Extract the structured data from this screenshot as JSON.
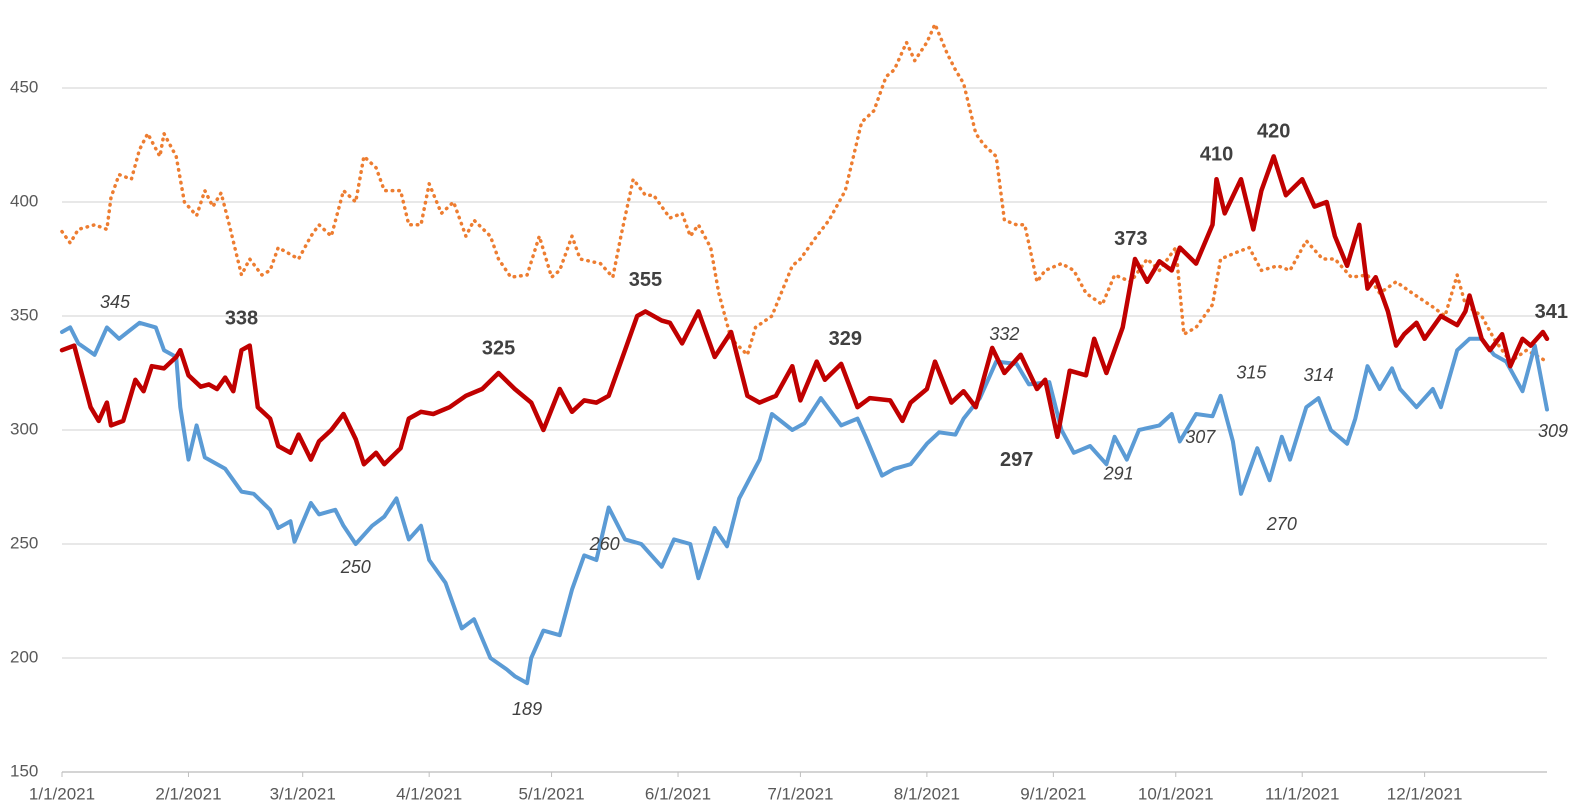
{
  "chart_data": {
    "type": "line",
    "xlim": [
      0,
      364
    ],
    "ylim": [
      150,
      475
    ],
    "grid": true,
    "yticks": [
      150,
      200,
      250,
      300,
      350,
      400,
      450
    ],
    "xticks": [
      {
        "value": 0,
        "label": "1/1/2021"
      },
      {
        "value": 31,
        "label": "2/1/2021"
      },
      {
        "value": 59,
        "label": "3/1/2021"
      },
      {
        "value": 90,
        "label": "4/1/2021"
      },
      {
        "value": 120,
        "label": "5/1/2021"
      },
      {
        "value": 151,
        "label": "6/1/2021"
      },
      {
        "value": 181,
        "label": "7/1/2021"
      },
      {
        "value": 212,
        "label": "8/1/2021"
      },
      {
        "value": 243,
        "label": "9/1/2021"
      },
      {
        "value": 273,
        "label": "10/1/2021"
      },
      {
        "value": 304,
        "label": "11/1/2021"
      },
      {
        "value": 334,
        "label": "12/1/2021"
      }
    ],
    "series": [
      {
        "color": "#ed7d31",
        "style": "dotted",
        "x": [
          0,
          2,
          4,
          8,
          11,
          12,
          14,
          17,
          19,
          21,
          24,
          25,
          28,
          30,
          33,
          35,
          37,
          39,
          41,
          44,
          46,
          49,
          51,
          53,
          56,
          58,
          61,
          63,
          66,
          69,
          72,
          74,
          77,
          79,
          83,
          85,
          88,
          90,
          93,
          96,
          99,
          101,
          105,
          107,
          110,
          114,
          117,
          120,
          122,
          125,
          127,
          132,
          135,
          137,
          140,
          143,
          145,
          149,
          152,
          154,
          156,
          159,
          161,
          164,
          168,
          170,
          174,
          179,
          181,
          185,
          188,
          192,
          196,
          199,
          202,
          204,
          207,
          209,
          212,
          214,
          217,
          219,
          221,
          224,
          226,
          229,
          231,
          234,
          236,
          239,
          241,
          245,
          248,
          251,
          255,
          258,
          262,
          266,
          269,
          273,
          275,
          278,
          282,
          284,
          288,
          291,
          294,
          298,
          301,
          305,
          309,
          312,
          316,
          320,
          323,
          327,
          331,
          336,
          339,
          342,
          344,
          348,
          351,
          355,
          359,
          364
        ],
        "values": [
          387,
          382,
          388,
          390,
          388,
          402,
          412,
          410,
          423,
          430,
          420,
          430,
          420,
          400,
          394,
          405,
          398,
          404,
          390,
          368,
          375,
          368,
          370,
          380,
          377,
          375,
          385,
          390,
          385,
          405,
          400,
          420,
          415,
          405,
          405,
          390,
          390,
          408,
          395,
          400,
          385,
          392,
          385,
          375,
          367,
          368,
          385,
          367,
          370,
          385,
          375,
          373,
          367,
          385,
          410,
          403,
          403,
          393,
          395,
          385,
          390,
          380,
          360,
          340,
          333,
          345,
          350,
          372,
          375,
          385,
          392,
          405,
          435,
          440,
          455,
          458,
          470,
          462,
          470,
          478,
          465,
          458,
          452,
          430,
          425,
          420,
          392,
          390,
          390,
          365,
          370,
          373,
          370,
          360,
          355,
          368,
          365,
          375,
          370,
          380,
          342,
          345,
          355,
          375,
          378,
          380,
          370,
          372,
          370,
          383,
          375,
          375,
          367,
          368,
          360,
          365,
          360,
          354,
          350,
          368,
          355,
          350,
          340,
          330,
          335,
          330
        ],
        "labeled_points": []
      },
      {
        "color": "#5b9bd5",
        "style": "italic",
        "x": [
          0,
          2,
          4,
          8,
          11,
          14,
          19,
          23,
          25,
          28,
          29,
          31,
          33,
          35,
          40,
          44,
          47,
          51,
          53,
          56,
          57,
          61,
          63,
          67,
          69,
          72,
          76,
          79,
          82,
          85,
          88,
          90,
          94,
          98,
          101,
          105,
          109,
          111,
          114,
          115,
          118,
          122,
          125,
          128,
          131,
          134,
          138,
          142,
          147,
          150,
          154,
          156,
          160,
          163,
          166,
          171,
          174,
          179,
          182,
          186,
          191,
          195,
          197,
          201,
          204,
          208,
          212,
          215,
          219,
          221,
          225,
          229,
          234,
          237,
          242,
          245,
          248,
          252,
          256,
          258,
          261,
          264,
          269,
          272,
          274,
          278,
          282,
          284,
          287,
          289,
          293,
          296,
          299,
          301,
          305,
          308,
          311,
          315,
          317,
          320,
          323,
          326,
          328,
          332,
          336,
          338,
          342,
          345,
          348,
          351,
          354,
          358,
          361,
          364
        ],
        "values": [
          343,
          345,
          338,
          333,
          345,
          340,
          347,
          345,
          335,
          332,
          310,
          287,
          302,
          288,
          283,
          273,
          272,
          265,
          257,
          260,
          251,
          268,
          263,
          265,
          258,
          250,
          258,
          262,
          270,
          252,
          258,
          243,
          233,
          213,
          217,
          200,
          195,
          192,
          189,
          200,
          212,
          210,
          230,
          245,
          243,
          266,
          252,
          250,
          240,
          252,
          250,
          235,
          257,
          249,
          270,
          287,
          307,
          300,
          303,
          314,
          302,
          305,
          297,
          280,
          283,
          285,
          294,
          299,
          298,
          305,
          314,
          330,
          329,
          320,
          321,
          300,
          290,
          293,
          285,
          297,
          287,
          300,
          302,
          307,
          295,
          307,
          306,
          315,
          295,
          272,
          292,
          278,
          297,
          287,
          310,
          314,
          300,
          294,
          305,
          328,
          318,
          327,
          318,
          310,
          318,
          310,
          335,
          340,
          340,
          333,
          330,
          317,
          337,
          309
        ],
        "labeled_points": [
          {
            "x": 13,
            "value": 345
          },
          {
            "x": 72,
            "value": 250
          },
          {
            "x": 114,
            "value": 189
          },
          {
            "x": 133,
            "value": 260
          },
          {
            "x": 231,
            "value": 332
          },
          {
            "x": 259,
            "value": 291
          },
          {
            "x": 279,
            "value": 307
          },
          {
            "x": 294,
            "value": 315
          },
          {
            "x": 299,
            "value": 270
          },
          {
            "x": 308,
            "value": 314
          },
          {
            "x": 364,
            "value": 309
          }
        ]
      },
      {
        "color": "#c00000",
        "style": "bold",
        "x": [
          0,
          3,
          7,
          9,
          11,
          12,
          15,
          18,
          20,
          22,
          25,
          28,
          29,
          31,
          34,
          36,
          38,
          40,
          42,
          44,
          46,
          48,
          51,
          53,
          56,
          58,
          61,
          63,
          66,
          69,
          72,
          74,
          77,
          79,
          83,
          85,
          88,
          91,
          95,
          99,
          103,
          107,
          111,
          115,
          118,
          122,
          125,
          128,
          131,
          134,
          138,
          141,
          143,
          147,
          149,
          152,
          156,
          160,
          164,
          168,
          171,
          175,
          179,
          181,
          185,
          187,
          191,
          195,
          198,
          203,
          206,
          208,
          212,
          214,
          218,
          221,
          224,
          228,
          231,
          235,
          239,
          241,
          244,
          247,
          251,
          253,
          256,
          260,
          263,
          266,
          269,
          272,
          274,
          278,
          282,
          283,
          285,
          289,
          292,
          294,
          297,
          300,
          304,
          307,
          310,
          312,
          315,
          318,
          320,
          322,
          325,
          327,
          329,
          332,
          334,
          338,
          342,
          344,
          345,
          348,
          350,
          353,
          355,
          358,
          360,
          363,
          364
        ],
        "values": [
          335,
          337,
          310,
          304,
          312,
          302,
          304,
          322,
          317,
          328,
          327,
          332,
          335,
          324,
          319,
          320,
          318,
          323,
          317,
          335,
          337,
          310,
          305,
          293,
          290,
          298,
          287,
          295,
          300,
          307,
          296,
          285,
          290,
          285,
          292,
          305,
          308,
          307,
          310,
          315,
          318,
          325,
          318,
          312,
          300,
          318,
          308,
          313,
          312,
          315,
          335,
          350,
          352,
          348,
          347,
          338,
          352,
          332,
          343,
          315,
          312,
          315,
          328,
          313,
          330,
          322,
          329,
          310,
          314,
          313,
          304,
          312,
          318,
          330,
          312,
          317,
          310,
          336,
          325,
          333,
          318,
          322,
          297,
          326,
          324,
          340,
          325,
          345,
          375,
          365,
          374,
          370,
          380,
          373,
          390,
          410,
          395,
          410,
          388,
          405,
          420,
          403,
          410,
          398,
          400,
          385,
          372,
          390,
          362,
          367,
          352,
          337,
          342,
          347,
          340,
          350,
          346,
          352,
          359,
          340,
          335,
          342,
          328,
          340,
          337,
          343,
          340
        ],
        "labeled_points": [
          {
            "x": 44,
            "value": 338
          },
          {
            "x": 107,
            "value": 325
          },
          {
            "x": 143,
            "value": 355
          },
          {
            "x": 192,
            "value": 329
          },
          {
            "x": 234,
            "value": 297
          },
          {
            "x": 262,
            "value": 373
          },
          {
            "x": 283,
            "value": 410
          },
          {
            "x": 297,
            "value": 420
          },
          {
            "x": 364,
            "value": 341
          }
        ]
      }
    ]
  }
}
